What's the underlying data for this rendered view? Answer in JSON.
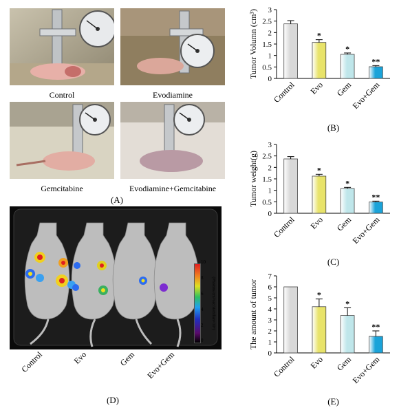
{
  "photos": {
    "control_caption": "Control",
    "evo_caption": "Evodiamine",
    "gem_caption": "Gemcitabine",
    "combo_caption": "Evodiamine+Gemcitabine",
    "panel_label": "(A)"
  },
  "imaging": {
    "panel_label": "(D)",
    "group_labels": [
      "Control",
      "Evo",
      "Gem",
      "Evo+Gem"
    ],
    "colorbar_ticks": [
      "10",
      "8",
      "6",
      "4",
      "2",
      "0"
    ],
    "colorbar_unit": "(Photons/cm²/sec/steridian×10⁶)"
  },
  "chart_data": [
    {
      "panel_label": "(B)",
      "type": "bar",
      "categories": [
        "Control",
        "Evo",
        "Gem",
        "Evo+Gem"
      ],
      "values": [
        2.38,
        1.57,
        1.05,
        0.51
      ],
      "errors": [
        0.14,
        0.12,
        0.06,
        0.05
      ],
      "significance": [
        "",
        "*",
        "*",
        "**"
      ],
      "colors": [
        "#d8d8d8",
        "#e8e36a",
        "#bfe6ea",
        "#1aa3d9"
      ],
      "ylabel": "Tumor Volumn (cm³)",
      "ylim": [
        0,
        3
      ],
      "yticks": [
        "0",
        "0.5",
        "1",
        "1.5",
        "2",
        "2.5",
        "3"
      ]
    },
    {
      "panel_label": "(C)",
      "type": "bar",
      "categories": [
        "Control",
        "Evo",
        "Gem",
        "Evo+Gem"
      ],
      "values": [
        2.37,
        1.62,
        1.08,
        0.49
      ],
      "errors": [
        0.1,
        0.08,
        0.05,
        0.04
      ],
      "significance": [
        "",
        "*",
        "*",
        "**"
      ],
      "colors": [
        "#d8d8d8",
        "#e8e36a",
        "#bfe6ea",
        "#1aa3d9"
      ],
      "ylabel": "Tumor weight(g)",
      "ylim": [
        0,
        3
      ],
      "yticks": [
        "0",
        "0.5",
        "1",
        "1.5",
        "2",
        "2.5",
        "3"
      ]
    },
    {
      "panel_label": "(E)",
      "type": "bar",
      "categories": [
        "Control",
        "Evo",
        "Gem",
        "Evo+Gem"
      ],
      "values": [
        6.0,
        4.2,
        3.4,
        1.5
      ],
      "errors": [
        0.0,
        0.7,
        0.7,
        0.5
      ],
      "significance": [
        "",
        "*",
        "*",
        "**"
      ],
      "colors": [
        "#d8d8d8",
        "#e8e36a",
        "#bfe6ea",
        "#1aa3d9"
      ],
      "ylabel": "The amount of tumor",
      "ylim": [
        0,
        7
      ],
      "yticks": [
        "0",
        "1",
        "2",
        "3",
        "4",
        "5",
        "6",
        "7"
      ]
    }
  ]
}
